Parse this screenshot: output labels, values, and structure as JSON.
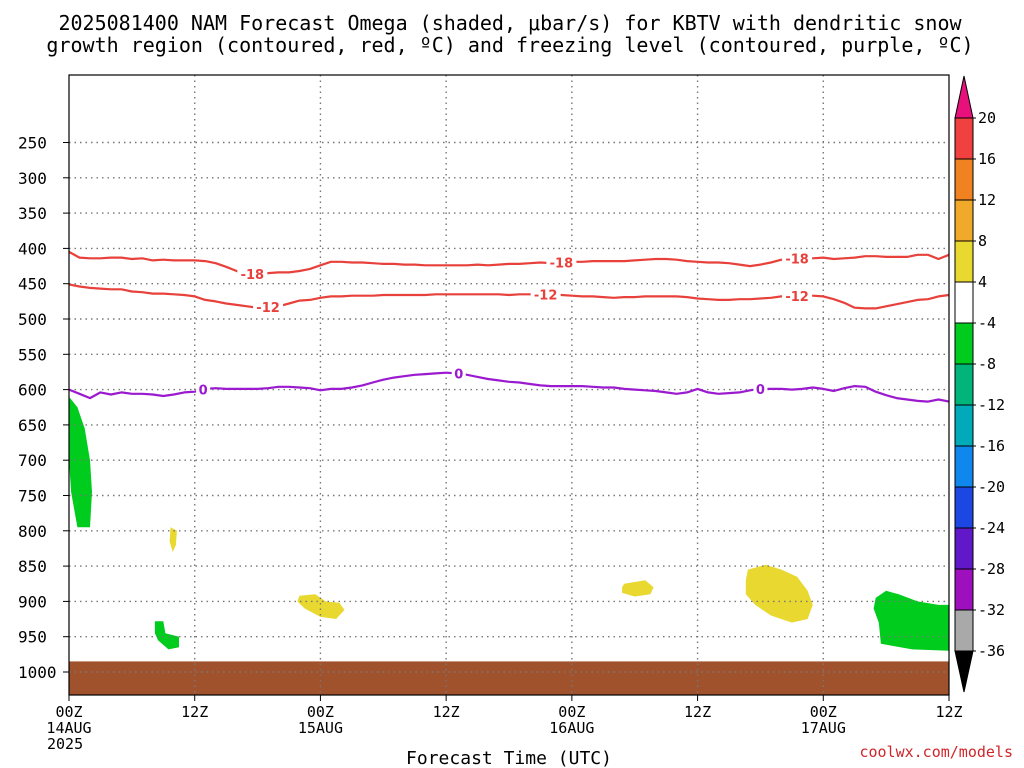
{
  "title_line1": "2025081400 NAM Forecast Omega (shaded, μbar/s) for KBTV with dendritic snow",
  "title_line2": "growth region (contoured, red, ºC) and freezing level (contoured, purple, ºC)",
  "credit": "coolwx.com/models",
  "chart_data": {
    "type": "heatmap",
    "title": "2025081400 NAM Forecast Omega (shaded, μbar/s) for KBTV with dendritic snow growth region (contoured, red, ºC) and freezing level (contoured, purple, ºC)",
    "xlabel": "Forecast Time (UTC)",
    "ylabel": "",
    "x_unit": "forecast hour from 2025-08-14 00Z",
    "xlim": [
      0,
      84
    ],
    "x_ticks": [
      {
        "hour": 0,
        "lines": [
          "00Z",
          "14AUG",
          "2025"
        ]
      },
      {
        "hour": 12,
        "lines": [
          "12Z"
        ]
      },
      {
        "hour": 24,
        "lines": [
          "00Z",
          "15AUG"
        ]
      },
      {
        "hour": 36,
        "lines": [
          "12Z"
        ]
      },
      {
        "hour": 48,
        "lines": [
          "00Z",
          "16AUG"
        ]
      },
      {
        "hour": 60,
        "lines": [
          "12Z"
        ]
      },
      {
        "hour": 72,
        "lines": [
          "00Z",
          "17AUG"
        ]
      },
      {
        "hour": 84,
        "lines": [
          "12Z"
        ]
      }
    ],
    "y_unit": "pressure (hPa)",
    "ylim": [
      1050,
      200
    ],
    "y_ticks": [
      250,
      300,
      350,
      400,
      450,
      500,
      550,
      600,
      650,
      700,
      750,
      800,
      850,
      900,
      950,
      1000
    ],
    "grid": true,
    "omega_colorbar": {
      "labels": [
        "20",
        "16",
        "12",
        "8",
        "4",
        "-4",
        "-8",
        "-12",
        "-16",
        "-20",
        "-24",
        "-28",
        "-32",
        "-36"
      ],
      "colors": [
        "#e8117c",
        "#f04040",
        "#f08222",
        "#f0a92a",
        "#e8d830",
        "#ffffff",
        "#00cc1e",
        "#00b47a",
        "#00aab9",
        "#0f87ec",
        "#1c47e3",
        "#6018c8",
        "#9e10bd",
        "#a9a9a9",
        "#000000"
      ]
    },
    "omega_regions": [
      {
        "label": "-4 to -8",
        "color": "#00cc1e",
        "points": [
          [
            0.0,
            610
          ],
          [
            0.8,
            625
          ],
          [
            1.5,
            655
          ],
          [
            2.0,
            700
          ],
          [
            2.2,
            745
          ],
          [
            2.0,
            795
          ],
          [
            0.8,
            795
          ],
          [
            0.2,
            745
          ],
          [
            0.0,
            700
          ]
        ]
      },
      {
        "label": "4 to 8",
        "color": "#e8d830",
        "points": [
          [
            9.7,
            795
          ],
          [
            10.3,
            800
          ],
          [
            10.2,
            820
          ],
          [
            9.9,
            830
          ],
          [
            9.6,
            815
          ]
        ]
      },
      {
        "label": "-4 to -8",
        "color": "#00cc1e",
        "points": [
          [
            8.2,
            928
          ],
          [
            9.0,
            928
          ],
          [
            9.2,
            945
          ],
          [
            10.5,
            950
          ],
          [
            10.5,
            965
          ],
          [
            9.5,
            968
          ],
          [
            8.5,
            955
          ],
          [
            8.2,
            945
          ]
        ]
      },
      {
        "label": "4 to 8",
        "color": "#e8d830",
        "points": [
          [
            22.0,
            892
          ],
          [
            23.5,
            890
          ],
          [
            24.5,
            900
          ],
          [
            25.8,
            902
          ],
          [
            26.3,
            912
          ],
          [
            25.5,
            925
          ],
          [
            24.0,
            922
          ],
          [
            22.5,
            910
          ],
          [
            21.8,
            900
          ]
        ]
      },
      {
        "label": "4 to 8",
        "color": "#e8d830",
        "points": [
          [
            53.0,
            875
          ],
          [
            55.0,
            870
          ],
          [
            55.8,
            880
          ],
          [
            55.5,
            890
          ],
          [
            54.0,
            893
          ],
          [
            52.8,
            888
          ],
          [
            52.8,
            880
          ]
        ]
      },
      {
        "label": "4 to 8",
        "color": "#e8d830",
        "points": [
          [
            64.8,
            855
          ],
          [
            66.5,
            848
          ],
          [
            68.0,
            855
          ],
          [
            69.5,
            865
          ],
          [
            70.5,
            885
          ],
          [
            71.0,
            905
          ],
          [
            70.5,
            925
          ],
          [
            69.0,
            930
          ],
          [
            67.0,
            920
          ],
          [
            65.5,
            905
          ],
          [
            64.6,
            890
          ],
          [
            64.6,
            870
          ]
        ]
      },
      {
        "label": "-4 to -8",
        "color": "#00cc1e",
        "points": [
          [
            77.0,
            895
          ],
          [
            78.0,
            885
          ],
          [
            79.2,
            890
          ],
          [
            81.0,
            900
          ],
          [
            83.0,
            905
          ],
          [
            84.0,
            905
          ],
          [
            84.0,
            970
          ],
          [
            80.5,
            968
          ],
          [
            77.5,
            960
          ],
          [
            77.3,
            930
          ],
          [
            76.8,
            910
          ]
        ]
      }
    ],
    "surface_shading": {
      "color": "#a0522d",
      "top_pressure": 985,
      "bottom_pressure": 1050
    },
    "series": [
      {
        "name": "-18",
        "color": "#e8413c",
        "x": [
          0,
          1,
          2,
          3,
          4,
          5,
          6,
          7,
          8,
          9,
          10,
          11,
          12,
          13,
          14,
          15,
          16,
          17,
          18,
          19,
          20,
          21,
          22,
          23,
          24,
          25,
          26,
          27,
          28,
          29,
          30,
          31,
          32,
          33,
          34,
          35,
          36,
          37,
          38,
          39,
          40,
          41,
          42,
          43,
          44,
          45,
          46,
          47,
          48,
          49,
          50,
          51,
          52,
          53,
          54,
          55,
          56,
          57,
          58,
          59,
          60,
          61,
          62,
          63,
          64,
          65,
          66,
          67,
          68,
          69,
          70,
          71,
          72,
          73,
          74,
          75,
          76,
          77,
          78,
          79,
          80,
          81,
          82,
          83,
          84
        ],
        "y": [
          405,
          413,
          414,
          414,
          413,
          413,
          415,
          414,
          417,
          416,
          417,
          417,
          417,
          418,
          421,
          426,
          432,
          436,
          437,
          435,
          434,
          434,
          432,
          429,
          424,
          419,
          419,
          420,
          420,
          421,
          422,
          422,
          423,
          423,
          424,
          424,
          424,
          424,
          424,
          423,
          424,
          423,
          422,
          422,
          421,
          420,
          421,
          420,
          419,
          419,
          418,
          418,
          418,
          418,
          417,
          416,
          415,
          415,
          416,
          418,
          419,
          420,
          420,
          421,
          423,
          425,
          423,
          420,
          416,
          415,
          414,
          414,
          413,
          415,
          414,
          413,
          411,
          411,
          412,
          412,
          412,
          409,
          409,
          415,
          409
        ]
      },
      {
        "name": "-12",
        "color": "#e8413c",
        "x": [
          0,
          1,
          2,
          3,
          4,
          5,
          6,
          7,
          8,
          9,
          10,
          11,
          12,
          13,
          14,
          15,
          16,
          17,
          18,
          19,
          20,
          21,
          22,
          23,
          24,
          25,
          26,
          27,
          28,
          29,
          30,
          31,
          32,
          33,
          34,
          35,
          36,
          37,
          38,
          39,
          40,
          41,
          42,
          43,
          44,
          45,
          46,
          47,
          48,
          49,
          50,
          51,
          52,
          53,
          54,
          55,
          56,
          57,
          58,
          59,
          60,
          61,
          62,
          63,
          64,
          65,
          66,
          67,
          68,
          69,
          70,
          71,
          72,
          73,
          74,
          75,
          76,
          77,
          78,
          79,
          80,
          81,
          82,
          83,
          84
        ],
        "y": [
          451,
          454,
          456,
          457,
          458,
          458,
          461,
          462,
          464,
          464,
          465,
          466,
          468,
          473,
          475,
          478,
          480,
          482,
          484,
          483,
          482,
          478,
          474,
          473,
          470,
          468,
          468,
          467,
          467,
          467,
          466,
          466,
          466,
          466,
          466,
          465,
          465,
          465,
          465,
          465,
          465,
          465,
          466,
          465,
          465,
          465,
          465,
          466,
          467,
          468,
          468,
          469,
          470,
          469,
          469,
          468,
          468,
          468,
          468,
          469,
          471,
          472,
          473,
          473,
          472,
          472,
          471,
          470,
          468,
          468,
          467,
          467,
          468,
          472,
          477,
          484,
          485,
          485,
          482,
          479,
          476,
          473,
          472,
          468,
          466
        ]
      },
      {
        "name": "0",
        "color": "#9b19cf",
        "x": [
          0,
          1,
          2,
          3,
          4,
          5,
          6,
          7,
          8,
          9,
          10,
          11,
          12,
          13,
          14,
          15,
          16,
          17,
          18,
          19,
          20,
          21,
          22,
          23,
          24,
          25,
          26,
          27,
          28,
          29,
          30,
          31,
          32,
          33,
          34,
          35,
          36,
          37,
          38,
          39,
          40,
          41,
          42,
          43,
          44,
          45,
          46,
          47,
          48,
          49,
          50,
          51,
          52,
          53,
          54,
          55,
          56,
          57,
          58,
          59,
          60,
          61,
          62,
          63,
          64,
          65,
          66,
          67,
          68,
          69,
          70,
          71,
          72,
          73,
          74,
          75,
          76,
          77,
          78,
          79,
          80,
          81,
          82,
          83,
          84
        ],
        "y": [
          600,
          606,
          612,
          604,
          607,
          604,
          606,
          606,
          607,
          609,
          607,
          604,
          603,
          599,
          598,
          599,
          599,
          599,
          599,
          598,
          596,
          596,
          597,
          598,
          601,
          599,
          599,
          597,
          594,
          590,
          586,
          583,
          581,
          579,
          578,
          577,
          576,
          577,
          579,
          582,
          585,
          587,
          589,
          590,
          592,
          594,
          595,
          595,
          595,
          595,
          596,
          597,
          597,
          599,
          600,
          601,
          602,
          604,
          606,
          604,
          599,
          604,
          606,
          605,
          604,
          601,
          599,
          599,
          599,
          600,
          599,
          597,
          599,
          602,
          598,
          595,
          596,
          603,
          608,
          612,
          614,
          616,
          617,
          614,
          617
        ]
      }
    ],
    "contour_labels": [
      {
        "series": "-18",
        "text": "-18",
        "x": 17.5
      },
      {
        "series": "-18",
        "text": "-18",
        "x": 47.0
      },
      {
        "series": "-18",
        "text": "-18",
        "x": 69.5
      },
      {
        "series": "-12",
        "text": "-12",
        "x": 19.0
      },
      {
        "series": "-12",
        "text": "-12",
        "x": 45.5
      },
      {
        "series": "-12",
        "text": "-12",
        "x": 69.5
      },
      {
        "series": "0",
        "text": "0",
        "x": 12.8
      },
      {
        "series": "0",
        "text": "0",
        "x": 37.2
      },
      {
        "series": "0",
        "text": "0",
        "x": 66.0
      }
    ]
  }
}
